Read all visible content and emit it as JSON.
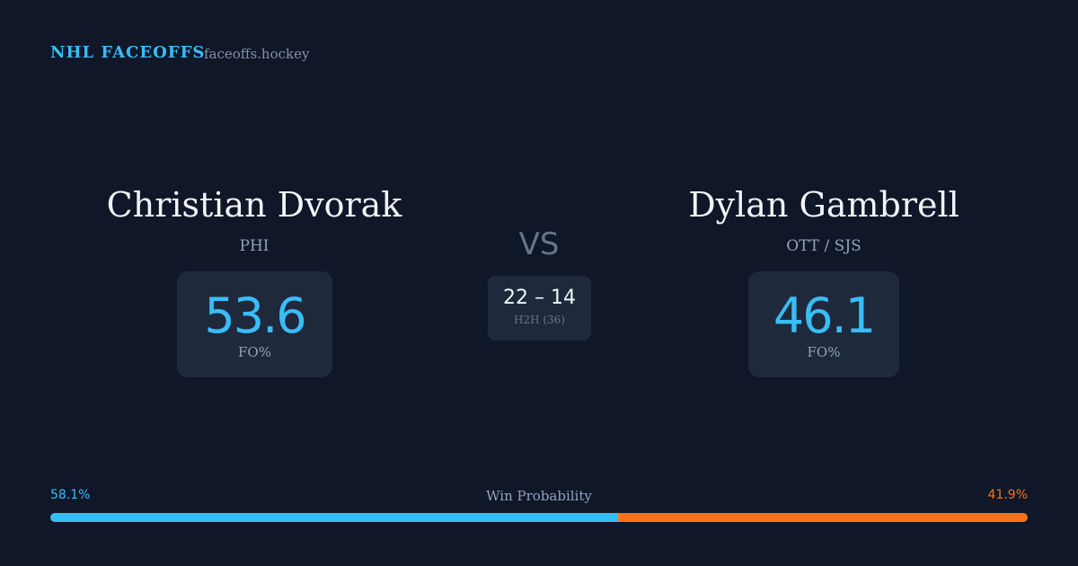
{
  "header": {
    "brand": "NHL FACEOFFS",
    "site": "faceoffs.hockey"
  },
  "players": [
    {
      "name": "Christian Dvorak",
      "team": "PHI",
      "fo_pct": 53.6,
      "fo_label": "FO%"
    },
    {
      "name": "Dylan Gambrell",
      "team": "OTT / SJS",
      "fo_pct": 46.1,
      "fo_label": "FO%"
    }
  ],
  "versus": "VS",
  "h2h": {
    "score": "22 – 14",
    "label": "H2H (36)"
  },
  "win_probability": {
    "title": "Win Probability",
    "values": [
      58.1,
      41.9
    ],
    "value_labels": [
      "58.1%",
      "41.9%"
    ],
    "colors": [
      "#38bdf8",
      "#f97316"
    ]
  }
}
